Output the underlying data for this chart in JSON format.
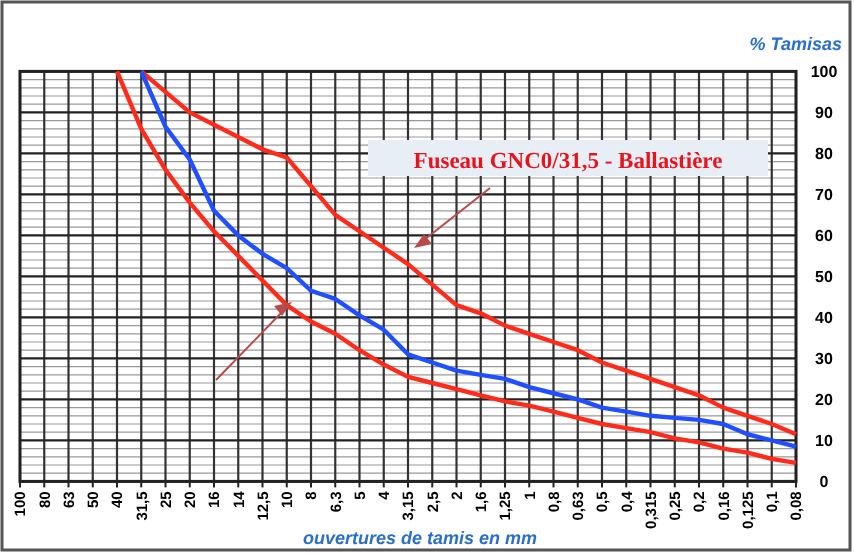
{
  "chart_data": {
    "type": "line",
    "xlabel": "ouvertures de tamis en mm",
    "ylabel": "% Tamisas",
    "categories": [
      "100",
      "80",
      "63",
      "50",
      "40",
      "31,5",
      "25",
      "20",
      "16",
      "14",
      "12,5",
      "10",
      "8",
      "6,3",
      "5",
      "4",
      "3,15",
      "2,5",
      "2",
      "1,6",
      "1,25",
      "1",
      "0,8",
      "0,63",
      "0,5",
      "0,4",
      "0,315",
      "0,25",
      "0,2",
      "0,16",
      "0,125",
      "0,1",
      "0,08"
    ],
    "series": [
      {
        "color": "#ff2a1a",
        "values": [
          null,
          null,
          null,
          null,
          null,
          100,
          95,
          90,
          87,
          84,
          81,
          79,
          72,
          65,
          61,
          57,
          53,
          48,
          43,
          41,
          38,
          36,
          34,
          32,
          29,
          27,
          25,
          23,
          21,
          18,
          16,
          14,
          11.5
        ]
      },
      {
        "color": "#ff2a1a",
        "values": [
          null,
          null,
          null,
          null,
          100,
          86,
          76,
          68,
          61,
          55,
          49,
          43,
          39,
          36,
          32,
          28.5,
          25.5,
          24,
          22.5,
          21,
          19.5,
          18.5,
          17,
          15.5,
          14,
          13,
          12,
          10.5,
          9.5,
          8,
          7,
          5.5,
          4.5
        ]
      },
      {
        "color": "#1f4fff",
        "values": [
          null,
          null,
          null,
          null,
          null,
          100,
          86.5,
          78.5,
          66,
          60,
          55.5,
          52,
          46.5,
          44.5,
          40.5,
          37,
          31,
          29,
          27,
          26,
          25,
          23,
          21.5,
          20,
          18,
          17,
          16,
          15.5,
          15,
          14,
          11.5,
          10,
          8.5
        ]
      }
    ],
    "ylim": [
      0,
      100
    ],
    "yticks": [
      0,
      10,
      20,
      30,
      40,
      50,
      60,
      70,
      80,
      90,
      100
    ],
    "grid": true,
    "marker": "none",
    "line_style": "solid",
    "annotations": [
      "Fuseau GNC0/31,5 - Ballastière"
    ]
  }
}
